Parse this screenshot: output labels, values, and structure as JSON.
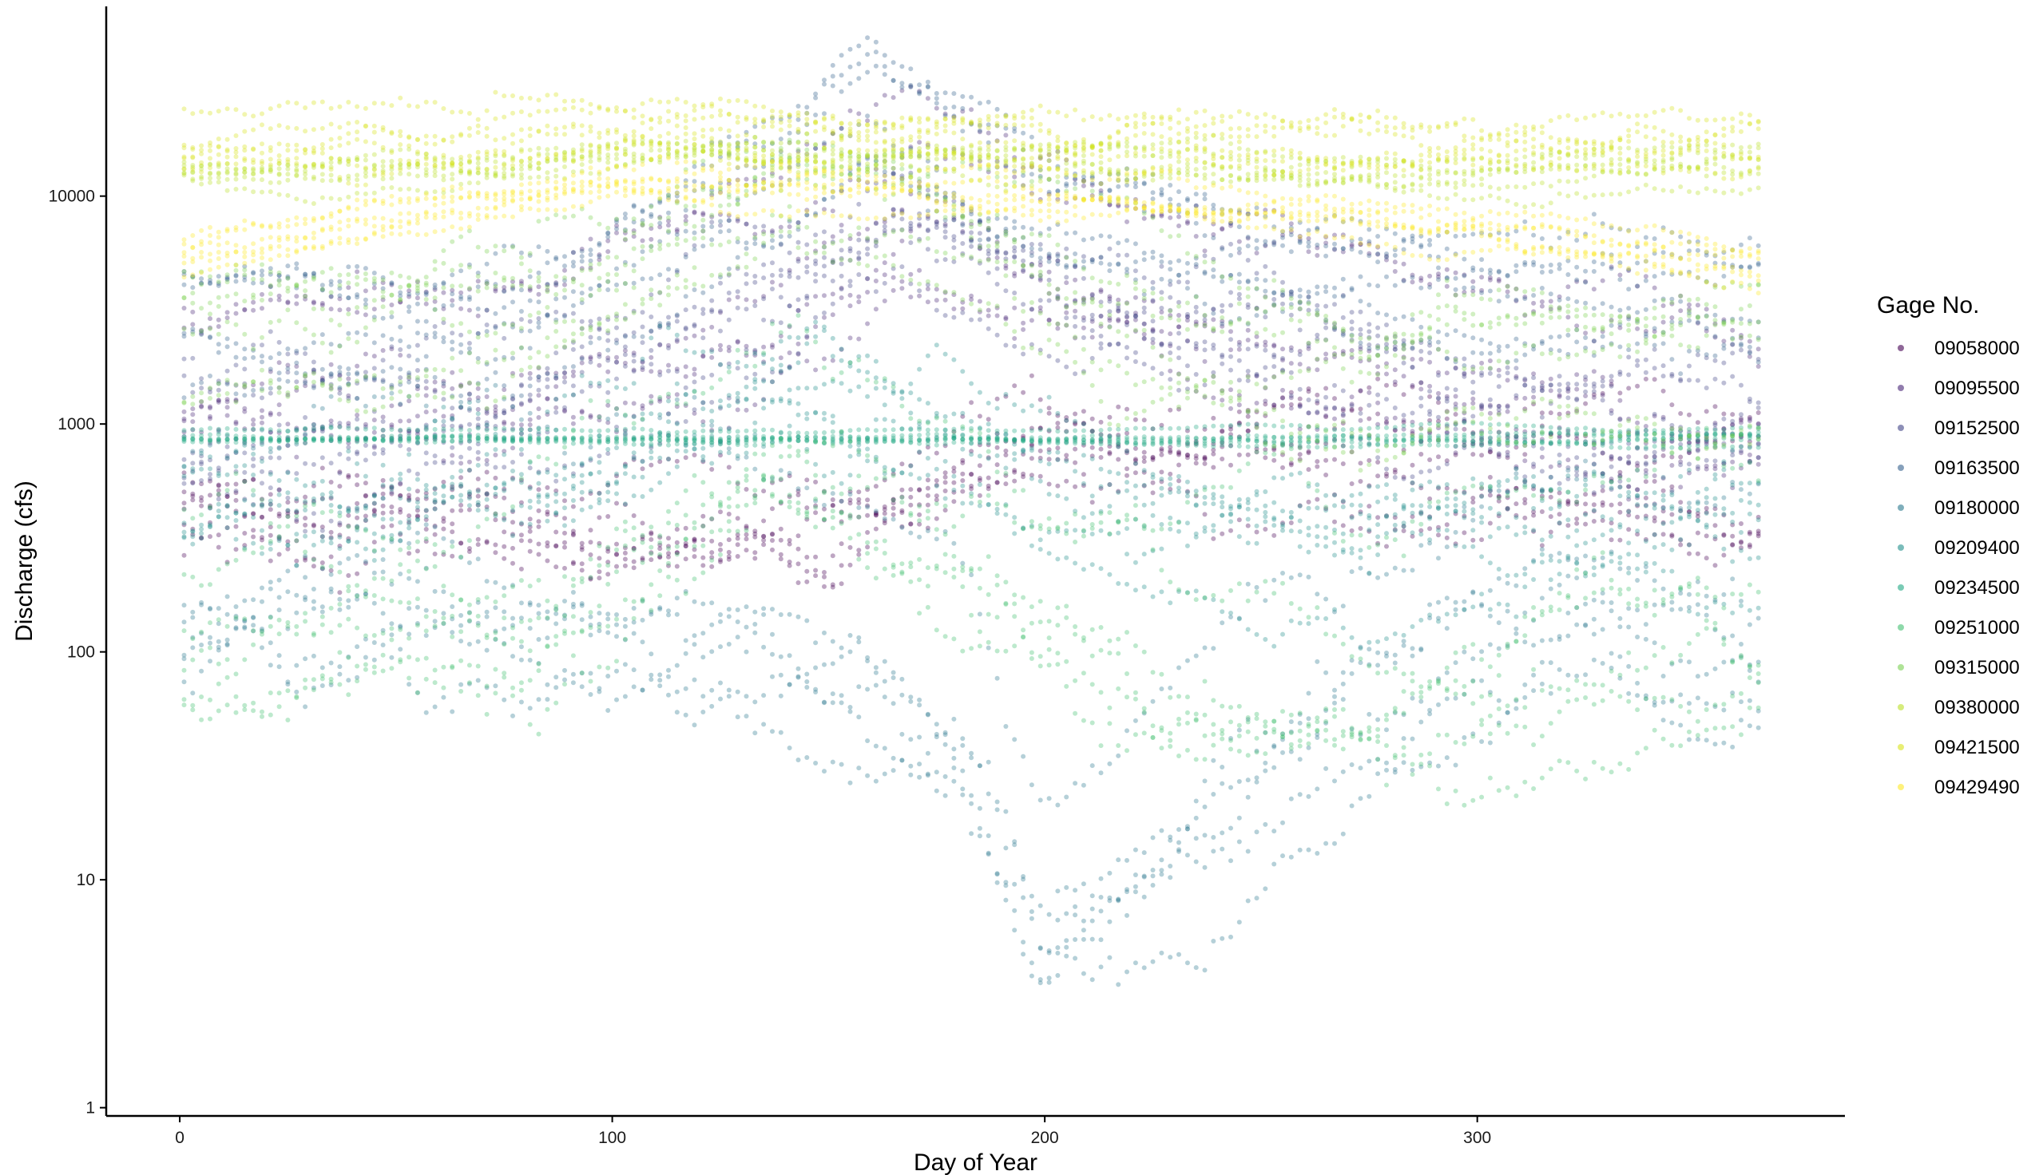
{
  "chart_data": {
    "type": "scatter",
    "title": "",
    "xlabel": "Day of Year",
    "ylabel": "Discharge (cfs)",
    "x_scale": "linear",
    "y_scale": "log10",
    "xlim": [
      -17,
      385
    ],
    "ylim": [
      0.92,
      68000
    ],
    "x_ticks": [
      0,
      100,
      200,
      300
    ],
    "y_ticks": [
      1,
      10,
      100,
      1000,
      10000
    ],
    "grid": false,
    "legend_title": "Gage No.",
    "legend_position": "right",
    "point_opacity": 0.35,
    "series": [
      {
        "name": "09058000",
        "color": "#440154",
        "baseline": [
          [
            1,
            540
          ],
          [
            60,
            520
          ],
          [
            100,
            420
          ],
          [
            150,
            380
          ],
          [
            200,
            900
          ],
          [
            260,
            1000
          ],
          [
            320,
            700
          ],
          [
            365,
            550
          ]
        ],
        "spread": 0.22
      },
      {
        "name": "09095500",
        "color": "#482576",
        "baseline": [
          [
            1,
            1500
          ],
          [
            80,
            1700
          ],
          [
            140,
            3500
          ],
          [
            170,
            9000
          ],
          [
            200,
            4500
          ],
          [
            260,
            2500
          ],
          [
            320,
            1800
          ],
          [
            365,
            1500
          ]
        ],
        "spread": 0.2
      },
      {
        "name": "09152500",
        "color": "#414487",
        "baseline": [
          [
            1,
            700
          ],
          [
            80,
            750
          ],
          [
            140,
            2500
          ],
          [
            165,
            6000
          ],
          [
            200,
            3000
          ],
          [
            260,
            1500
          ],
          [
            320,
            800
          ],
          [
            365,
            700
          ]
        ],
        "spread": 0.22
      },
      {
        "name": "09163500",
        "color": "#35608D",
        "baseline": [
          [
            1,
            2800
          ],
          [
            80,
            3200
          ],
          [
            140,
            12000
          ],
          [
            160,
            28000
          ],
          [
            200,
            9000
          ],
          [
            260,
            4500
          ],
          [
            320,
            3500
          ],
          [
            365,
            3000
          ]
        ],
        "spread": 0.16
      },
      {
        "name": "09180000",
        "color": "#2A788E",
        "baseline": [
          [
            1,
            120
          ],
          [
            60,
            150
          ],
          [
            120,
            160
          ],
          [
            180,
            40
          ],
          [
            200,
            5
          ],
          [
            230,
            15
          ],
          [
            280,
            60
          ],
          [
            320,
            150
          ],
          [
            365,
            120
          ]
        ],
        "spread": 0.28
      },
      {
        "name": "09209400",
        "color": "#21908C",
        "baseline": [
          [
            1,
            400
          ],
          [
            80,
            500
          ],
          [
            140,
            1500
          ],
          [
            180,
            800
          ],
          [
            220,
            350
          ],
          [
            260,
            300
          ],
          [
            320,
            350
          ],
          [
            365,
            400
          ]
        ],
        "spread": 0.22
      },
      {
        "name": "09234500",
        "color": "#22A884",
        "baseline": [
          [
            1,
            850
          ],
          [
            100,
            850
          ],
          [
            200,
            850
          ],
          [
            300,
            850
          ],
          [
            365,
            850
          ]
        ],
        "spread": 0.02
      },
      {
        "name": "09251000",
        "color": "#43BF71",
        "baseline": [
          [
            1,
            220
          ],
          [
            80,
            260
          ],
          [
            140,
            1200
          ],
          [
            180,
            500
          ],
          [
            230,
            150
          ],
          [
            280,
            80
          ],
          [
            320,
            180
          ],
          [
            365,
            220
          ]
        ],
        "spread": 0.28
      },
      {
        "name": "09315000",
        "color": "#7AD151",
        "baseline": [
          [
            1,
            2200
          ],
          [
            80,
            2600
          ],
          [
            140,
            9000
          ],
          [
            170,
            7000
          ],
          [
            220,
            2500
          ],
          [
            280,
            1500
          ],
          [
            320,
            1800
          ],
          [
            365,
            2200
          ]
        ],
        "spread": 0.2
      },
      {
        "name": "09380000",
        "color": "#BBDF27",
        "baseline": [
          [
            1,
            13000
          ],
          [
            60,
            12500
          ],
          [
            120,
            16000
          ],
          [
            170,
            15000
          ],
          [
            240,
            14000
          ],
          [
            300,
            12500
          ],
          [
            365,
            13500
          ]
        ],
        "spread": 0.07
      },
      {
        "name": "09421500",
        "color": "#D8E219",
        "baseline": [
          [
            1,
            15000
          ],
          [
            60,
            16000
          ],
          [
            120,
            19000
          ],
          [
            160,
            17000
          ],
          [
            220,
            16000
          ],
          [
            300,
            15000
          ],
          [
            365,
            15500
          ]
        ],
        "spread": 0.1
      },
      {
        "name": "09429490",
        "color": "#FDE725",
        "baseline": [
          [
            1,
            5000
          ],
          [
            40,
            7000
          ],
          [
            100,
            10500
          ],
          [
            150,
            9500
          ],
          [
            200,
            9000
          ],
          [
            260,
            8000
          ],
          [
            320,
            6000
          ],
          [
            365,
            4500
          ]
        ],
        "spread": 0.07
      }
    ]
  }
}
